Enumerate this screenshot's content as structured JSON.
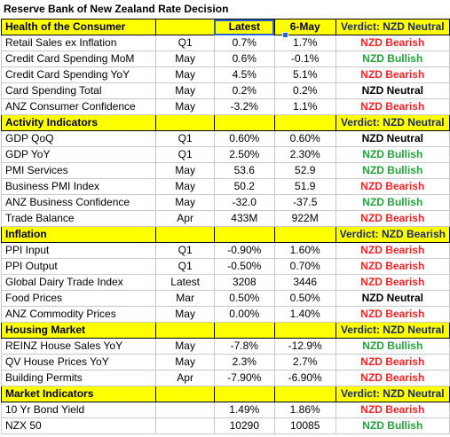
{
  "title": "Reserve Bank of New Zealand Rate Decision",
  "colors": {
    "section_bg": "#ffff00",
    "bearish": "#ff1f1f",
    "bullish": "#22a43a",
    "neutral": "#000000",
    "selection": "#2a62d6"
  },
  "sections": [
    {
      "name": "Health of the Consumer",
      "col_latest": "Latest",
      "col_prev": "6-May",
      "verdict": "Verdict: NZD Neutral",
      "verdict_tone": "neutral",
      "rows": [
        {
          "name": "Retail Sales ex Inflation",
          "period": "Q1",
          "latest": "0.7%",
          "prev": "1.7%",
          "verdict": "NZD Bearish",
          "tone": "bearish"
        },
        {
          "name": "Credit Card Spending MoM",
          "period": "May",
          "latest": "0.6%",
          "prev": "-0.1%",
          "verdict": "NZD Bullish",
          "tone": "bullish"
        },
        {
          "name": "Credit Card Spending YoY",
          "period": "May",
          "latest": "4.5%",
          "prev": "5.1%",
          "verdict": "NZD Bearish",
          "tone": "bearish"
        },
        {
          "name": "Card Spending Total",
          "period": "May",
          "latest": "0.2%",
          "prev": "0.2%",
          "verdict": "NZD Neutral",
          "tone": "neutral"
        },
        {
          "name": "ANZ Consumer Confidence",
          "period": "May",
          "latest": "-3.2%",
          "prev": "1.1%",
          "verdict": "NZD Bearish",
          "tone": "bearish"
        }
      ]
    },
    {
      "name": "Activity Indicators",
      "col_latest": "",
      "col_prev": "",
      "verdict": "Verdict: NZD Neutral",
      "verdict_tone": "neutral",
      "rows": [
        {
          "name": "GDP QoQ",
          "period": "Q1",
          "latest": "0.60%",
          "prev": "0.60%",
          "verdict": "NZD Neutral",
          "tone": "neutral"
        },
        {
          "name": "GDP YoY",
          "period": "Q1",
          "latest": "2.50%",
          "prev": "2.30%",
          "verdict": "NZD Bullish",
          "tone": "bullish"
        },
        {
          "name": "PMI Services",
          "period": "May",
          "latest": "53.6",
          "prev": "52.9",
          "verdict": "NZD Bullish",
          "tone": "bullish"
        },
        {
          "name": "Business PMI Index",
          "period": "May",
          "latest": "50.2",
          "prev": "51.9",
          "verdict": "NZD Bearish",
          "tone": "bearish"
        },
        {
          "name": "ANZ Business Confidence",
          "period": "May",
          "latest": "-32.0",
          "prev": "-37.5",
          "verdict": "NZD Bullish",
          "tone": "bullish"
        },
        {
          "name": "Trade Balance",
          "period": "Apr",
          "latest": "433M",
          "prev": "922M",
          "verdict": "NZD Bearish",
          "tone": "bearish"
        }
      ]
    },
    {
      "name": "Inflation",
      "col_latest": "",
      "col_prev": "",
      "verdict": "Verdict: NZD Bearish",
      "verdict_tone": "bearish",
      "rows": [
        {
          "name": "PPI Input",
          "period": "Q1",
          "latest": "-0.90%",
          "prev": "1.60%",
          "verdict": "NZD Bearish",
          "tone": "bearish"
        },
        {
          "name": "PPI Output",
          "period": "Q1",
          "latest": "-0.50%",
          "prev": "0.70%",
          "verdict": "NZD Bearish",
          "tone": "bearish"
        },
        {
          "name": "Global Dairy Trade Index",
          "period": "Latest",
          "latest": "3208",
          "prev": "3446",
          "verdict": "NZD Bearish",
          "tone": "bearish"
        },
        {
          "name": "Food Prices",
          "period": "Mar",
          "latest": "0.50%",
          "prev": "0.50%",
          "verdict": "NZD Neutral",
          "tone": "neutral"
        },
        {
          "name": "ANZ Commodity Prices",
          "period": "May",
          "latest": "0.00%",
          "prev": "1.40%",
          "verdict": "NZD Bearish",
          "tone": "bearish"
        }
      ]
    },
    {
      "name": "Housing Market",
      "col_latest": "",
      "col_prev": "",
      "verdict": "Verdict: NZD Neutral",
      "verdict_tone": "neutral",
      "rows": [
        {
          "name": "REINZ House Sales YoY",
          "period": "May",
          "latest": "-7.8%",
          "prev": "-12.9%",
          "verdict": "NZD Bullish",
          "tone": "bullish"
        },
        {
          "name": "QV House Prices YoY",
          "period": "May",
          "latest": "2.3%",
          "prev": "2.7%",
          "verdict": "NZD Bearish",
          "tone": "bearish"
        },
        {
          "name": "Building Permits",
          "period": "Apr",
          "latest": "-7.90%",
          "prev": "-6.90%",
          "verdict": "NZD Bearish",
          "tone": "bearish"
        }
      ]
    },
    {
      "name": "Market Indicators",
      "col_latest": "",
      "col_prev": "",
      "verdict": "Verdict: NZD Neutral",
      "verdict_tone": "neutral",
      "rows": [
        {
          "name": "10 Yr Bond Yield",
          "period": "",
          "latest": "1.49%",
          "prev": "1.86%",
          "verdict": "NZD Bearish",
          "tone": "bearish"
        },
        {
          "name": "NZX 50",
          "period": "",
          "latest": "10290",
          "prev": "10085",
          "verdict": "NZD Bullish",
          "tone": "bullish"
        }
      ]
    }
  ]
}
